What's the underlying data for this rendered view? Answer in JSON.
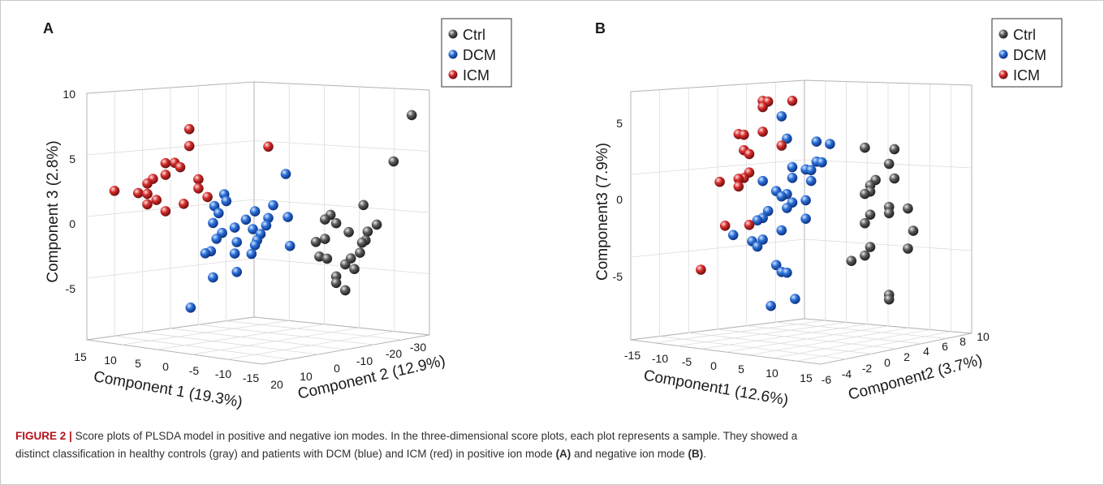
{
  "chart_data": [
    {
      "type": "scatter",
      "panel_label": "A",
      "legend": [
        "Ctrl",
        "DCM",
        "ICM"
      ],
      "legend_placement": "top-right",
      "xlabel": "Component 1 (19.3%)",
      "ylabel": "Component 2 (12.9%)",
      "zlabel": "Component 3 (2.8%)",
      "x_ticks": [
        "15",
        "10",
        "5",
        "0",
        "-5",
        "-10",
        "-15"
      ],
      "y_ticks": [
        "20",
        "10",
        "0",
        "-10",
        "-20",
        "-30"
      ],
      "z_ticks": [
        "10",
        "5",
        "0",
        "-5"
      ],
      "colors": {
        "Ctrl": "#4a4a4a",
        "DCM": "#1f5fc4",
        "ICM": "#d42c2c"
      },
      "series": [
        {
          "name": "Ctrl",
          "points": [
            [
              -20,
              -14,
              9
            ],
            [
              -18,
              -12,
              5.3
            ],
            [
              -12,
              -13,
              1.7
            ],
            [
              -15,
              -12,
              0.3
            ],
            [
              -14,
              -11,
              -0.3
            ],
            [
              -10,
              -12,
              -0.5
            ],
            [
              -13,
              -11,
              -1.2
            ],
            [
              -8,
              -10,
              0.7
            ],
            [
              -9,
              -10,
              0.1
            ],
            [
              -12,
              -12,
              -2
            ],
            [
              -11,
              -11,
              -2.5
            ],
            [
              -10,
              -11,
              -3
            ],
            [
              -8,
              -9,
              -2.7
            ],
            [
              -9,
              -10,
              -4
            ],
            [
              -9,
              -10,
              -4.5
            ],
            [
              -10,
              -11,
              -5
            ],
            [
              -7,
              -10,
              0.3
            ],
            [
              -7,
              -10,
              -1.2
            ],
            [
              -6,
              -9,
              -1.5
            ],
            [
              -6,
              -10,
              -2.6
            ],
            [
              -11,
              -12,
              -3.3
            ],
            [
              -13,
              -12,
              -1
            ]
          ]
        },
        {
          "name": "DCM",
          "points": [
            [
              0,
              -10,
              3.5
            ],
            [
              -1,
              -9,
              0.2
            ],
            [
              1,
              -8,
              1
            ],
            [
              2,
              -6,
              -1.3
            ],
            [
              0,
              -5,
              0
            ],
            [
              1,
              -6,
              -0.6
            ],
            [
              -2,
              -8,
              -2
            ],
            [
              3,
              -6,
              -2.2
            ],
            [
              4,
              -7,
              -1
            ],
            [
              4,
              -5,
              -0.3
            ],
            [
              5,
              -4,
              -2.1
            ],
            [
              6,
              -5,
              -1
            ],
            [
              6,
              -5,
              -3
            ],
            [
              7,
              -3,
              -1.5
            ],
            [
              8,
              -3,
              -2
            ],
            [
              9,
              -3,
              -3
            ],
            [
              10,
              -3,
              -3.2
            ],
            [
              8,
              -2,
              -0.8
            ],
            [
              7,
              -2,
              0
            ],
            [
              6,
              -2,
              1.5
            ],
            [
              5,
              -1,
              1
            ],
            [
              9,
              -4,
              0.5
            ],
            [
              3,
              -5,
              -2.9
            ],
            [
              5,
              -4,
              -4.4
            ],
            [
              8,
              -2,
              -5
            ],
            [
              12,
              -2,
              -7.5
            ],
            [
              2,
              -5,
              -1.8
            ],
            [
              3,
              -6,
              0.4
            ]
          ]
        },
        {
          "name": "ICM",
          "points": [
            [
              6,
              8,
              6.3
            ],
            [
              6,
              8,
              5
            ],
            [
              8,
              9,
              3.6
            ],
            [
              7,
              9,
              3.3
            ],
            [
              9,
              10,
              3.5
            ],
            [
              9,
              10,
              2.6
            ],
            [
              5,
              7,
              2.5
            ],
            [
              5,
              7,
              1.8
            ],
            [
              10,
              12,
              2.2
            ],
            [
              11,
              12,
              1.8
            ],
            [
              12,
              13,
              1
            ],
            [
              11,
              12,
              1
            ],
            [
              11,
              12,
              0.2
            ],
            [
              10,
              11,
              0.6
            ],
            [
              7,
              8,
              0.5
            ],
            [
              4,
              6,
              1.2
            ],
            [
              15,
              15,
              1
            ],
            [
              0,
              -5,
              5.5
            ],
            [
              9,
              10,
              -0.2
            ]
          ]
        }
      ]
    },
    {
      "type": "scatter",
      "panel_label": "B",
      "legend": [
        "Ctrl",
        "DCM",
        "ICM"
      ],
      "legend_placement": "top-right",
      "xlabel": "Component1 (12.6%)",
      "ylabel": "Component2 (3.7%)",
      "zlabel": "Component3 (7.9%)",
      "x_ticks": [
        "-15",
        "-10",
        "-5",
        "0",
        "5",
        "10",
        "15"
      ],
      "y_ticks": [
        "-6",
        "-4",
        "-2",
        "0",
        "2",
        "4",
        "6",
        "8",
        "10"
      ],
      "z_ticks": [
        "5",
        "0",
        "-5"
      ],
      "colors": {
        "Ctrl": "#4a4a4a",
        "DCM": "#1f5fc4",
        "ICM": "#d42c2c"
      },
      "series": [
        {
          "name": "Ctrl",
          "points": [
            [
              -13,
              -3,
              4.2
            ],
            [
              -12,
              -3,
              3.2
            ],
            [
              -9,
              -2,
              4
            ],
            [
              -13,
              -3,
              2.3
            ],
            [
              -11,
              -2,
              2
            ],
            [
              -10,
              -2,
              1.6
            ],
            [
              -10,
              -2,
              1.2
            ],
            [
              -9,
              -2,
              1
            ],
            [
              -12,
              -3,
              0.4
            ],
            [
              -14,
              -4,
              0.5
            ],
            [
              -12,
              -3,
              0
            ],
            [
              -10,
              -2,
              -0.3
            ],
            [
              -9,
              -2,
              -0.9
            ],
            [
              -15,
              -4,
              -0.9
            ],
            [
              -14,
              -4,
              -2.1
            ],
            [
              -10,
              -2,
              -2.4
            ],
            [
              -9,
              -2,
              -3
            ],
            [
              -8,
              -1,
              -3.5
            ],
            [
              -12,
              -3,
              -5.3
            ],
            [
              -12,
              -3,
              -5.6
            ]
          ]
        },
        {
          "name": "DCM",
          "points": [
            [
              -4,
              -1,
              3.9
            ],
            [
              -3,
              0,
              3.9
            ],
            [
              -4,
              0,
              2.6
            ],
            [
              -3,
              0,
              2.6
            ],
            [
              -2,
              0,
              2
            ],
            [
              -1,
              0,
              2
            ],
            [
              0,
              1,
              2
            ],
            [
              1,
              1,
              3.8
            ],
            [
              2,
              1,
              5.2
            ],
            [
              -2,
              0,
              1.3
            ],
            [
              0,
              1,
              1.3
            ],
            [
              1,
              1,
              0.2
            ],
            [
              -1,
              0,
              0
            ],
            [
              0,
              1,
              -0.3
            ],
            [
              1,
              1,
              -0.7
            ],
            [
              2,
              1,
              0
            ],
            [
              3,
              1,
              0.3
            ],
            [
              3,
              2,
              -1.1
            ],
            [
              4,
              2,
              -1.6
            ],
            [
              5,
              2,
              -1.8
            ],
            [
              2,
              1,
              -2.2
            ],
            [
              -1,
              0,
              -1.2
            ],
            [
              4,
              2,
              -3
            ],
            [
              5,
              2,
              -3.5
            ],
            [
              3,
              1,
              -4.5
            ],
            [
              1,
              1,
              -4.9
            ],
            [
              2,
              1,
              -4.9
            ],
            [
              6,
              2,
              -3.2
            ],
            [
              8,
              3,
              -3
            ],
            [
              4,
              2,
              0.8
            ],
            [
              1,
              0,
              -6.5
            ],
            [
              4,
              1,
              -7.2
            ]
          ]
        },
        {
          "name": "ICM",
          "points": [
            [
              0,
              1,
              6.3
            ],
            [
              3,
              2,
              6
            ],
            [
              4,
              2,
              6
            ],
            [
              4,
              2,
              5.6
            ],
            [
              2,
              1,
              3.3
            ],
            [
              4,
              2,
              4
            ],
            [
              6,
              3,
              3.6
            ],
            [
              7,
              3,
              3.6
            ],
            [
              6,
              3,
              2.6
            ],
            [
              5,
              3,
              2.4
            ],
            [
              5,
              3,
              1.2
            ],
            [
              6,
              3,
              0.8
            ],
            [
              7,
              3,
              0.7
            ],
            [
              7,
              3,
              0.2
            ],
            [
              9,
              4,
              0.3
            ],
            [
              5,
              3,
              -2.2
            ],
            [
              8,
              4,
              -2.5
            ],
            [
              11,
              5,
              -5.6
            ]
          ]
        }
      ]
    }
  ],
  "caption": {
    "label": "FIGURE 2 |",
    "line1": "Score plots of PLSDA model in positive and negative ion modes. In the three-dimensional score plots, each plot represents a sample. They showed a",
    "line2_pre": "distinct classification in healthy controls (gray) and patients with DCM (blue) and ICM (red) in positive ion mode",
    "line2_a": "(A)",
    "line2_mid": "and negative ion mode",
    "line2_b": "(B)",
    "line2_end": "."
  }
}
